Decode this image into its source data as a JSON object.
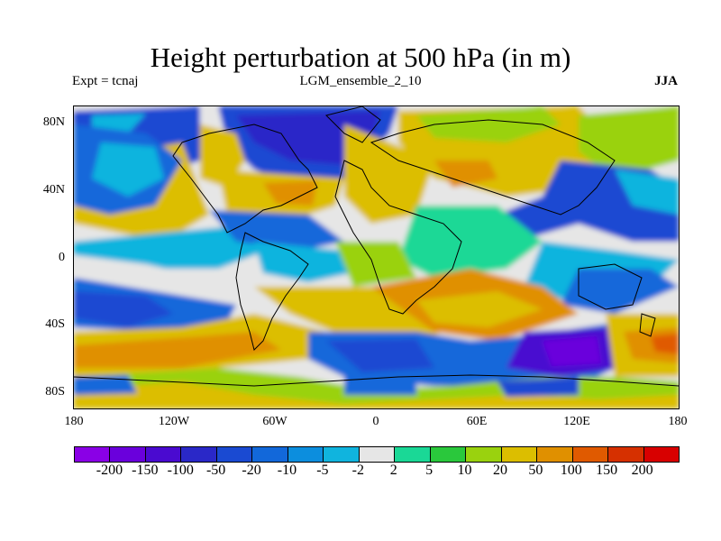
{
  "title": "Height perturbation at 500 hPa (in m)",
  "experiment": "Expt = tcnaj",
  "ensemble": "LGM_ensemble_2_10",
  "season": "JJA",
  "lat_labels": [
    "80N",
    "40N",
    "0",
    "40S",
    "80S"
  ],
  "lon_labels": [
    "180",
    "120W",
    "60W",
    "0",
    "60E",
    "120E",
    "180"
  ],
  "colorbar": {
    "labels": [
      "-200",
      "-150",
      "-100",
      "-50",
      "-20",
      "-10",
      "-5",
      "-2",
      "2",
      "5",
      "10",
      "20",
      "50",
      "100",
      "150",
      "200"
    ],
    "colors": [
      "#8a00e6",
      "#6a00dc",
      "#4a0ad0",
      "#2a28c8",
      "#1a4ad2",
      "#1268da",
      "#0c8ede",
      "#10b4de",
      "#e6e6e6",
      "#1ad896",
      "#2ac83c",
      "#9ad20e",
      "#dcbe00",
      "#e09000",
      "#e05a00",
      "#d63000",
      "#d80000"
    ]
  }
}
